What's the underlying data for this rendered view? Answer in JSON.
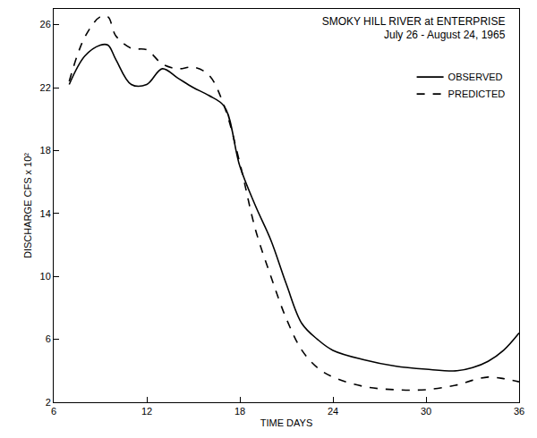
{
  "chart_data": {
    "type": "line",
    "title": "SMOKY HILL RIVER at ENTERPRISE",
    "subtitle": "July 26 - August 24, 1965",
    "x_label": "TIME DAYS",
    "y_label": "DISCHARGE CFS x 10²",
    "x": [
      7,
      8,
      9,
      9.5,
      10,
      11,
      12,
      13,
      14,
      15,
      16,
      17,
      18,
      19,
      20,
      21,
      22,
      23,
      24,
      26,
      28,
      30,
      32,
      33,
      34,
      35,
      36
    ],
    "series": [
      {
        "name": "OBSERVED",
        "color": "#000000",
        "line_style": "solid",
        "values": [
          22.2,
          24.0,
          24.7,
          24.7,
          23.8,
          22.2,
          22.2,
          23.2,
          22.6,
          22.0,
          21.5,
          20.8,
          17.0,
          14.5,
          12.3,
          9.5,
          7.0,
          6.0,
          5.3,
          4.7,
          4.3,
          4.1,
          4.0,
          4.2,
          4.6,
          5.3,
          6.4
        ]
      },
      {
        "name": "PREDICTED",
        "color": "#000000",
        "line_style": "dashed",
        "values": [
          22.4,
          25.2,
          26.5,
          26.5,
          25.3,
          24.5,
          24.4,
          23.5,
          23.2,
          23.3,
          22.8,
          20.8,
          17.2,
          13.0,
          10.0,
          7.3,
          5.3,
          4.2,
          3.6,
          3.0,
          2.8,
          2.8,
          3.1,
          3.4,
          3.6,
          3.5,
          3.3
        ]
      }
    ],
    "xlim": [
      6,
      36
    ],
    "xticks": [
      6,
      12,
      18,
      24,
      30,
      36
    ],
    "ylim": [
      2,
      27
    ],
    "yticks": [
      2,
      6,
      10,
      14,
      18,
      22,
      26
    ],
    "grid": false,
    "legend": "upper right"
  }
}
